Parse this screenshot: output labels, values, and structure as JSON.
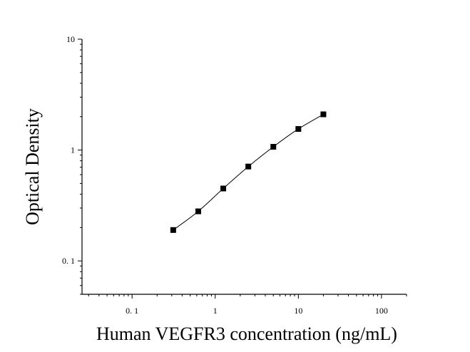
{
  "chart_data": {
    "type": "scatter",
    "title": "",
    "xlabel": "Human VEGFR3 concentration (ng/mL)",
    "ylabel": "Optical Density",
    "x_scale": "log",
    "y_scale": "log",
    "xlim": [
      0.025,
      200
    ],
    "ylim": [
      0.05,
      10
    ],
    "x_ticks": [
      {
        "value": 0.1,
        "label": "0. 1"
      },
      {
        "value": 1,
        "label": "1"
      },
      {
        "value": 10,
        "label": "10"
      },
      {
        "value": 100,
        "label": "100"
      }
    ],
    "y_ticks": [
      {
        "value": 0.1,
        "label": "0. 1"
      },
      {
        "value": 1,
        "label": "1"
      },
      {
        "value": 10,
        "label": "10"
      }
    ],
    "grid": false,
    "legend": "none",
    "series": [
      {
        "marker": "square",
        "color": "#000000",
        "fit_line": true,
        "x": [
          0.3125,
          0.625,
          1.25,
          2.5,
          5,
          10,
          20
        ],
        "y": [
          0.19,
          0.28,
          0.45,
          0.71,
          1.07,
          1.55,
          2.1
        ]
      }
    ]
  }
}
